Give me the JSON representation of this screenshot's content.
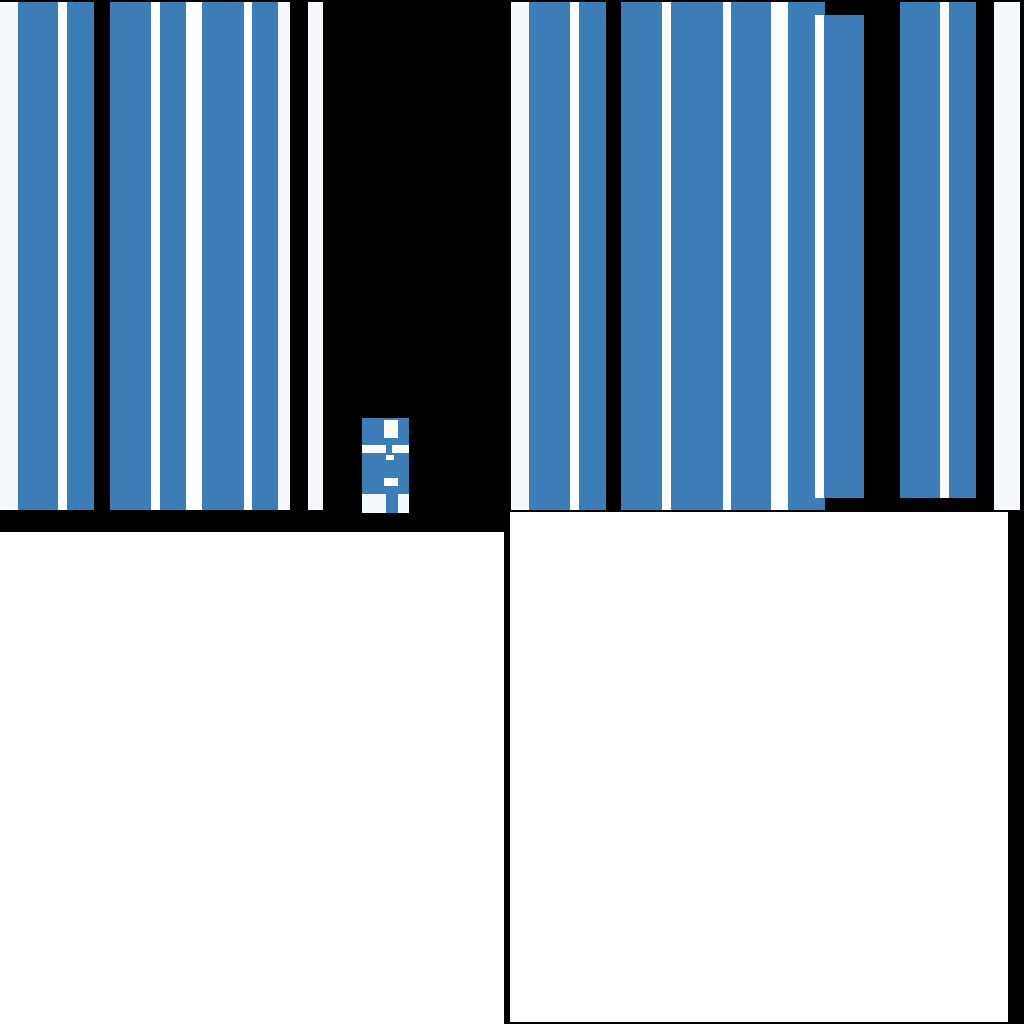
{
  "palette": {
    "background": "#000000",
    "stripe_blue": "#3e7eb8",
    "stripe_pale": "#f4f9fd",
    "stripe_white": "#fbfdff",
    "panel_white": "#ffffff"
  },
  "tiles": [
    {
      "name": "texture-tile-top-left",
      "stripes": [
        "pale",
        "blue",
        "white",
        "blue"
      ]
    },
    {
      "name": "texture-tile-top-left-b",
      "stripes": [
        "blue",
        "white",
        "blue",
        "white",
        "blue",
        "white",
        "blue",
        "white"
      ]
    },
    {
      "name": "texture-tile-thin-pale",
      "stripes": [
        "pale"
      ]
    },
    {
      "name": "texture-tile-small-swatch",
      "stripes": [
        "blue",
        "white",
        "blue"
      ]
    },
    {
      "name": "texture-tile-top-right",
      "stripes": [
        "pale",
        "blue",
        "white",
        "blue"
      ]
    },
    {
      "name": "texture-tile-top-right-b",
      "stripes": [
        "blue",
        "white",
        "blue",
        "white",
        "blue",
        "white",
        "blue"
      ]
    },
    {
      "name": "texture-tile-top-right-c",
      "stripes": [
        "blue",
        "white",
        "blue"
      ]
    },
    {
      "name": "texture-tile-right-edge",
      "stripes": [
        "pale"
      ]
    },
    {
      "name": "texture-tile-bottom-left",
      "stripes": []
    },
    {
      "name": "texture-tile-bottom-right",
      "stripes": []
    }
  ]
}
